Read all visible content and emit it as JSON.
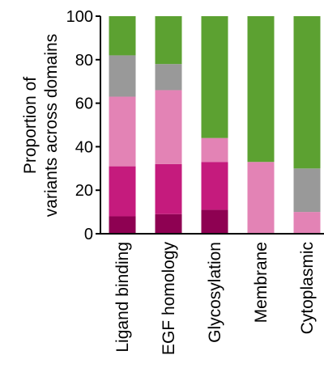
{
  "chart_data": {
    "type": "bar",
    "stacked": true,
    "ylabel_line1": "Proportion of",
    "ylabel_line2": "variants across domains",
    "ylim": [
      0,
      100
    ],
    "yticks": [
      0,
      20,
      40,
      60,
      80,
      100
    ],
    "categories": [
      "Ligand binding",
      "EGF homology",
      "Glycosylation",
      "Membrane",
      "Cytoplasmic"
    ],
    "series": [
      {
        "color": "#8e0152",
        "values": [
          8,
          9,
          11,
          0,
          0
        ]
      },
      {
        "color": "#c51b7d",
        "values": [
          23,
          23,
          22,
          0,
          0
        ]
      },
      {
        "color": "#e383b5",
        "values": [
          32,
          34,
          11,
          33,
          10
        ]
      },
      {
        "color": "#999999",
        "values": [
          19,
          12,
          0,
          0,
          20
        ]
      },
      {
        "color": "#5ca131",
        "values": [
          18,
          22,
          56,
          67,
          70
        ]
      }
    ]
  }
}
